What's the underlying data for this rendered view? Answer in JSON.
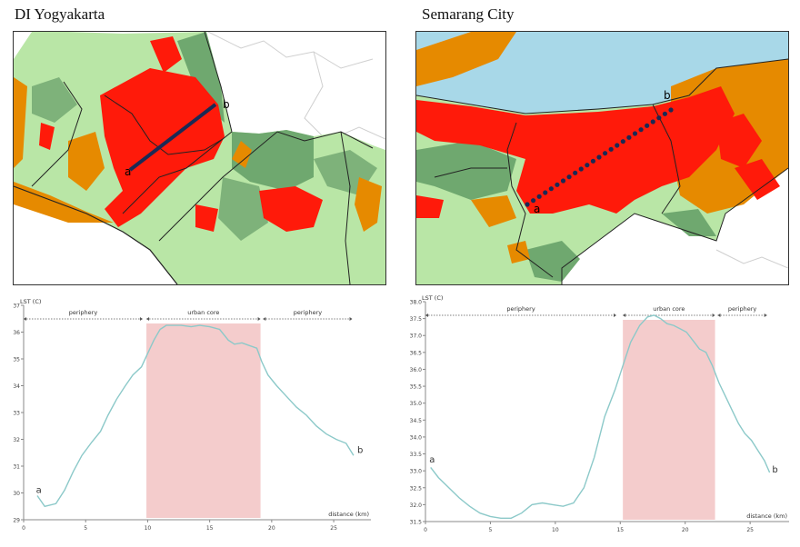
{
  "panels": [
    {
      "title": "DI Yogyakarta",
      "transect": {
        "start_label": "a",
        "end_label": "b"
      }
    },
    {
      "title": "Semarang City",
      "transect": {
        "start_label": "a",
        "end_label": "b"
      }
    }
  ],
  "colors": {
    "very_high": "#ff1a0a",
    "high": "#e68a00",
    "moderate": "#9dd18b",
    "low": "#6fa86f",
    "water": "#a8d8e8",
    "urban_core_shade": "#f4cccc",
    "profile_line": "#8cc9c9"
  },
  "chart_data": [
    {
      "type": "line",
      "ylabel": "LST (C)",
      "xlabel": "distance (km)",
      "xlim": [
        0,
        28
      ],
      "ylim": [
        29,
        37
      ],
      "xticks": [
        "0",
        "5",
        "10",
        "15",
        "20",
        "25"
      ],
      "yticks": [
        "29",
        "30",
        "31",
        "32",
        "33",
        "34",
        "35",
        "36",
        "37"
      ],
      "zones": [
        {
          "label": "periphery",
          "from": 0,
          "to": 9.6
        },
        {
          "label": "urban core",
          "from": 9.9,
          "to": 19.1
        },
        {
          "label": "periphery",
          "from": 19.3,
          "to": 26.5
        }
      ],
      "shaded_range": [
        9.9,
        19.1
      ],
      "point_labels": [
        {
          "text": "a",
          "x": 1.0,
          "y": 30.0
        },
        {
          "text": "b",
          "x": 26.9,
          "y": 31.5
        }
      ],
      "series": [
        {
          "name": "LST",
          "x": [
            1.1,
            1.7,
            2.6,
            3.3,
            4.0,
            4.7,
            5.5,
            6.2,
            6.8,
            7.5,
            8.2,
            8.8,
            9.5,
            10.0,
            10.5,
            11.0,
            11.5,
            12.0,
            12.7,
            13.5,
            14.2,
            15.0,
            15.8,
            16.5,
            17.0,
            17.6,
            18.2,
            18.8,
            19.2,
            19.7,
            20.4,
            21.2,
            22.0,
            22.8,
            23.6,
            24.4,
            25.2,
            26.0,
            26.6
          ],
          "y": [
            29.9,
            29.5,
            29.6,
            30.1,
            30.8,
            31.4,
            31.9,
            32.3,
            32.9,
            33.5,
            34.0,
            34.4,
            34.7,
            35.2,
            35.7,
            36.1,
            36.25,
            36.25,
            36.25,
            36.2,
            36.25,
            36.2,
            36.1,
            35.7,
            35.55,
            35.6,
            35.5,
            35.4,
            34.9,
            34.4,
            34.0,
            33.6,
            33.2,
            32.9,
            32.5,
            32.2,
            32.0,
            31.85,
            31.4
          ]
        }
      ]
    },
    {
      "type": "line",
      "ylabel": "LST (C)",
      "xlabel": "distance (km)",
      "xlim": [
        0,
        28
      ],
      "ylim": [
        31.5,
        38.0
      ],
      "xticks": [
        "0",
        "5",
        "10",
        "15",
        "20",
        "25"
      ],
      "yticks": [
        "31.5",
        "32.0",
        "32.5",
        "33.0",
        "33.5",
        "34.0",
        "34.5",
        "35.0",
        "35.5",
        "36.0",
        "36.5",
        "37.0",
        "37.5",
        "38.0"
      ],
      "zones": [
        {
          "label": "periphery",
          "from": 0,
          "to": 14.7
        },
        {
          "label": "urban core",
          "from": 15.2,
          "to": 22.3
        },
        {
          "label": "periphery",
          "from": 22.5,
          "to": 26.3
        }
      ],
      "shaded_range": [
        15.2,
        22.3
      ],
      "point_labels": [
        {
          "text": "a",
          "x": 0.3,
          "y": 33.25
        },
        {
          "text": "b",
          "x": 26.7,
          "y": 32.95
        }
      ],
      "series": [
        {
          "name": "LST",
          "x": [
            0.4,
            1.0,
            1.8,
            2.6,
            3.4,
            4.2,
            5.0,
            5.8,
            6.6,
            7.4,
            8.2,
            9.0,
            9.8,
            10.6,
            11.4,
            12.2,
            13.0,
            13.8,
            14.6,
            15.2,
            15.8,
            16.5,
            17.1,
            17.6,
            18.1,
            18.6,
            19.1,
            19.6,
            20.1,
            20.6,
            21.1,
            21.6,
            22.1,
            22.6,
            23.1,
            23.6,
            24.1,
            24.6,
            25.1,
            25.6,
            26.1,
            26.5
          ],
          "y": [
            33.1,
            32.8,
            32.5,
            32.2,
            31.95,
            31.75,
            31.65,
            31.6,
            31.6,
            31.75,
            32.0,
            32.05,
            32.0,
            31.95,
            32.05,
            32.5,
            33.4,
            34.6,
            35.4,
            36.1,
            36.8,
            37.3,
            37.55,
            37.6,
            37.5,
            37.35,
            37.3,
            37.2,
            37.1,
            36.85,
            36.6,
            36.5,
            36.1,
            35.6,
            35.2,
            34.8,
            34.4,
            34.1,
            33.9,
            33.6,
            33.3,
            32.95
          ]
        }
      ]
    }
  ]
}
